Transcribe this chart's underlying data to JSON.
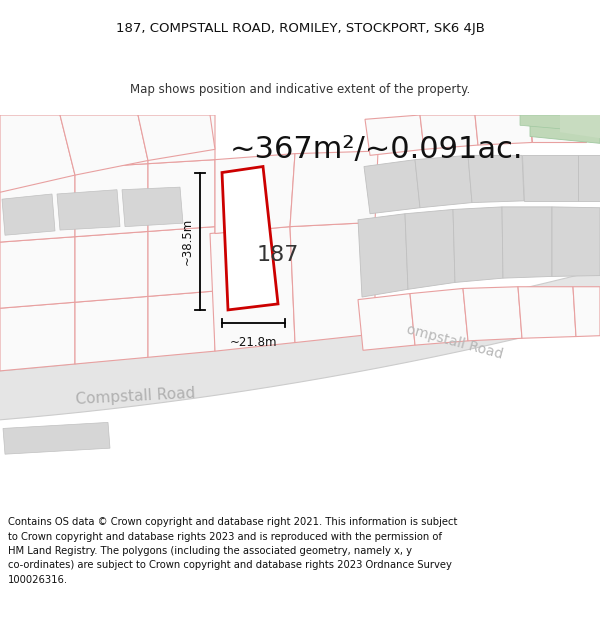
{
  "title_line1": "187, COMPSTALL ROAD, ROMILEY, STOCKPORT, SK6 4JB",
  "title_line2": "Map shows position and indicative extent of the property.",
  "area_text": "~367m²/~0.091ac.",
  "dimension_width": "~21.8m",
  "dimension_height": "~38.5m",
  "property_number": "187",
  "road_label_left": "Compstall Road",
  "road_label_right": "ompstall Road",
  "footer_lines": [
    "Contains OS data © Crown copyright and database right 2021. This information is subject",
    "to Crown copyright and database rights 2023 and is reproduced with the permission of",
    "HM Land Registry. The polygons (including the associated geometry, namely x, y",
    "co-ordinates) are subject to Crown copyright and database rights 2023 Ordnance Survey",
    "100026316."
  ],
  "bg_color": "#ffffff",
  "map_bg": "#f8f8f8",
  "plot_fill": "#ffffff",
  "plot_edge": "#cc0000",
  "road_fill": "#e5e5e5",
  "building_fill": "#d6d6d6",
  "parcel_edge_pink": "#e8a0a0",
  "parcel_edge_gray": "#c0c0c0",
  "green_patch": "#c0d8b8",
  "title_fontsize": 9.5,
  "subtitle_fontsize": 8.5,
  "area_fontsize": 22,
  "label_fontsize": 10,
  "footer_fontsize": 7.2,
  "dim_fontsize": 8.5
}
